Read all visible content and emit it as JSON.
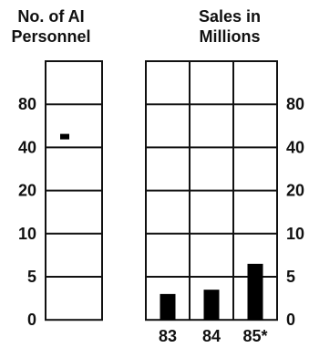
{
  "chart_data": [
    {
      "type": "scatter",
      "title_lines": [
        "No. of AI",
        "Personnel"
      ],
      "y_ticks": [
        "80",
        "40",
        "20",
        "10",
        "5",
        "0"
      ],
      "points": [
        {
          "x": "",
          "y": 50
        }
      ]
    },
    {
      "type": "bar",
      "title_lines": [
        "Sales in",
        "Millions"
      ],
      "categories": [
        "83",
        "84",
        "85*"
      ],
      "values": [
        3,
        3.5,
        6.5
      ],
      "y_ticks": [
        "80",
        "40",
        "20",
        "10",
        "5",
        "0"
      ],
      "bar_color": "#000000"
    }
  ]
}
